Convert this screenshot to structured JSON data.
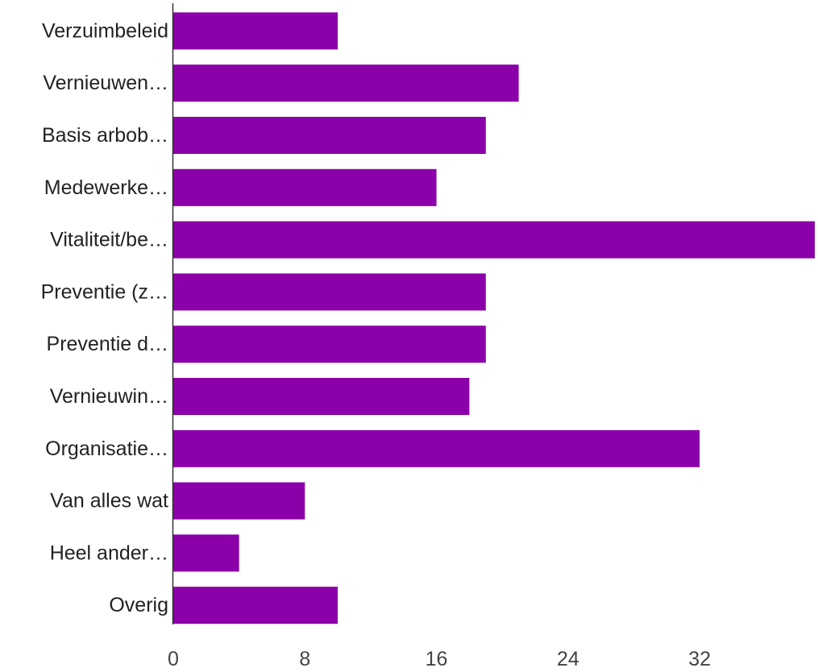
{
  "chart_data": {
    "type": "bar",
    "orientation": "horizontal",
    "categories": [
      "Verzuimbeleid",
      "Vernieuwen…",
      "Basis arbob…",
      "Medewerke…",
      "Vitaliteit/be…",
      "Preventie (z…",
      "Preventie d…",
      "Vernieuwin…",
      "Organisatie…",
      "Van alles wat",
      "Heel ander…",
      "Overig"
    ],
    "values": [
      10,
      21,
      19,
      16,
      39,
      19,
      19,
      18,
      32,
      8,
      4,
      10
    ],
    "xlim": [
      0,
      39
    ],
    "xticks": [
      0,
      8,
      16,
      24,
      32
    ],
    "grid": false,
    "legend": "none",
    "bar_color": "#8b00a8",
    "axis_color": "#333333",
    "label_color": "#222222"
  }
}
